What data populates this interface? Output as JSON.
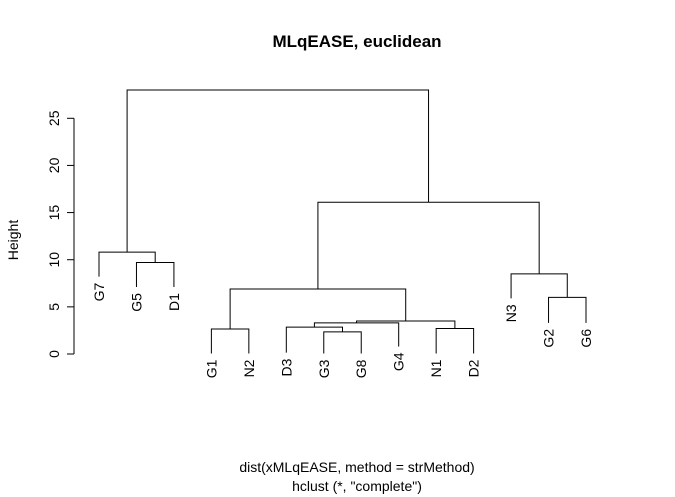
{
  "chart_data": {
    "type": "dendrogram",
    "title": "MLqEASE, euclidean",
    "ylabel": "Height",
    "xlabel_lines": [
      "dist(xMLqEASE, method = strMethod)",
      "hclust (*, \"complete\")"
    ],
    "ylim": [
      0,
      28
    ],
    "yticks": [
      0,
      5,
      10,
      15,
      20,
      25
    ],
    "leaves": [
      "G7",
      "G5",
      "D1",
      "G1",
      "N2",
      "D3",
      "G3",
      "G8",
      "G4",
      "N1",
      "D2",
      "N3",
      "G2",
      "G6"
    ],
    "merges": [
      {
        "a": "G3",
        "b": "G8",
        "height": 2.35,
        "name": "c1"
      },
      {
        "a": "N1",
        "b": "D2",
        "height": 2.7,
        "name": "c2"
      },
      {
        "a": "D3",
        "b": "c1",
        "height": 2.85,
        "name": "c3"
      },
      {
        "a": "G1",
        "b": "N2",
        "height": 2.65,
        "name": "c4"
      },
      {
        "a": "c3",
        "b": "G4",
        "height": 3.3,
        "name": "c5"
      },
      {
        "a": "c5",
        "b": "c2",
        "height": 3.5,
        "name": "c6"
      },
      {
        "a": "c4",
        "b": "c6",
        "height": 6.9,
        "name": "c7"
      },
      {
        "a": "G2",
        "b": "G6",
        "height": 6.0,
        "name": "c8"
      },
      {
        "a": "N3",
        "b": "c8",
        "height": 8.5,
        "name": "c9"
      },
      {
        "a": "c7",
        "b": "c9",
        "height": 16.1,
        "name": "c10"
      },
      {
        "a": "G5",
        "b": "D1",
        "height": 9.7,
        "name": "c11"
      },
      {
        "a": "G7",
        "b": "c11",
        "height": 10.8,
        "name": "c12"
      },
      {
        "a": "c12",
        "b": "c10",
        "height": 28.0,
        "name": "c13"
      }
    ],
    "leaf_heights": {
      "G7": 8.2,
      "G5": 7.1,
      "D1": 7.1,
      "G1": 0.05,
      "N2": 0.05,
      "D3": 0.15,
      "G3": 0.05,
      "G8": 0.05,
      "G4": 0.8,
      "N1": 0.05,
      "D2": 0.05,
      "N3": 5.9,
      "G2": 3.3,
      "G6": 3.3
    },
    "grid": false,
    "legend": "none"
  }
}
